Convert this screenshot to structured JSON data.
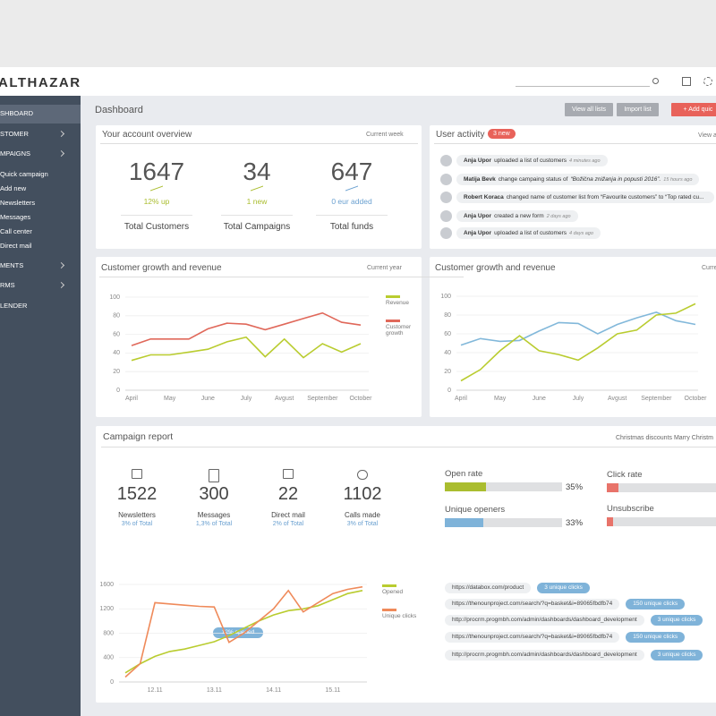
{
  "header": {
    "logo": "ALTHAZAR"
  },
  "sidebar": {
    "nav": [
      "SHBOARD",
      "STOMER",
      "MPAIGNS",
      "MENTS",
      "RMS",
      "LENDER"
    ],
    "campaign_links": [
      "Quick campaign",
      "Add new",
      "Newsletters",
      "Messages",
      "Call center",
      "Direct mail"
    ]
  },
  "page": {
    "title": "Dashboard",
    "buttons": [
      "View all lists",
      "Import list",
      "+ Add quic"
    ]
  },
  "overview": {
    "title": "Your account overview",
    "period": "Current week",
    "stats": [
      {
        "value": 1647,
        "change": "12% up",
        "label": "Total Customers"
      },
      {
        "value": 34,
        "change": "1 new",
        "label": "Total Campaigns"
      },
      {
        "value": 647,
        "change": "0 eur added",
        "label": "Total funds"
      }
    ]
  },
  "activity": {
    "title": "User activity",
    "badge": "3 new",
    "link": "View a",
    "items": [
      {
        "user": "Anja Upor",
        "action": "uploaded a list of customers",
        "time": "4 minutes ago"
      },
      {
        "user": "Matija Bevk",
        "action": "change campaing status of",
        "quote": "“Božična znižanja in popusti 2016”.",
        "time": "15 hours ago"
      },
      {
        "user": "Robert Koraca",
        "action": "changed name of customer list from “Favourite customers” to “Top rated cu..."
      },
      {
        "user": "Anja Upor",
        "action": "created a new form",
        "time": "2 days ago"
      },
      {
        "user": "Anja Upor",
        "action": "uploaded a list of customers",
        "time": "4 days ago"
      }
    ]
  },
  "campaign": {
    "title": "Campaign report",
    "filter": "Christmas discounts Marry Christm",
    "stats": [
      {
        "value": 1522,
        "label": "Newsletters",
        "share": "3% of Total"
      },
      {
        "value": 300,
        "label": "Messages",
        "share": "1,3% of Total"
      },
      {
        "value": 22,
        "label": "Direct mail",
        "share": "2% of Total"
      },
      {
        "value": 1102,
        "label": "Calls made",
        "share": "3% of Total"
      }
    ],
    "rates": [
      {
        "name": "Open rate",
        "value": 35,
        "label": "35%",
        "color": "#aabd2f"
      },
      {
        "name": "Unique openers",
        "value": 33,
        "label": "33%",
        "color": "#7fb3d9"
      },
      {
        "name": "Click rate",
        "value": 9,
        "color": "#e8736a"
      },
      {
        "name": "Unsubscribe",
        "value": 5,
        "color": "#e8736a"
      }
    ],
    "links": [
      {
        "url": "https://databox.com/product",
        "clicks": "3 unique clicks"
      },
      {
        "url": "https://thenounproject.com/search/?q=basket&i=89065fbdfb74",
        "clicks": "150 unique clicks"
      },
      {
        "url": "http://procrm.progmbh.com/admin/dashboards/dashboard_development",
        "clicks": "3 unique clicks"
      },
      {
        "url": "https://thenounproject.com/search/?q=basket&i=89065fbdfb74",
        "clicks": "150 unique clicks"
      },
      {
        "url": "http://procrm.progmbh.com/admin/dashboards/dashboard_development",
        "clicks": "3 unique clicks"
      }
    ]
  },
  "chart_data": [
    {
      "type": "line",
      "title": "Customer growth and revenue",
      "period": "Current year",
      "categories": [
        "April",
        null,
        "May",
        null,
        "June",
        null,
        "July",
        null,
        "Avgust",
        null,
        "September",
        null,
        "October"
      ],
      "ylim": [
        0,
        100
      ],
      "yticks": [
        0,
        20,
        40,
        60,
        80,
        100
      ],
      "grid": true,
      "series": [
        {
          "name": "Revenue",
          "color": "#b9cc2f",
          "values": [
            32,
            38,
            38,
            41,
            44,
            52,
            57,
            36,
            55,
            35,
            50,
            41,
            50
          ]
        },
        {
          "name": "Customer growth",
          "color": "#e0685a",
          "values": [
            48,
            55,
            55,
            55,
            66,
            72,
            71,
            65,
            71,
            77,
            83,
            73,
            70
          ]
        }
      ]
    },
    {
      "type": "line",
      "title": "Customer growth and revenue",
      "period": "Curre",
      "categories": [
        "April",
        null,
        "May",
        null,
        "June",
        null,
        "July",
        null,
        "Avgust",
        null,
        "September",
        null,
        "October"
      ],
      "ylim": [
        0,
        100
      ],
      "yticks": [
        0,
        20,
        40,
        60,
        80,
        100
      ],
      "grid": true,
      "series": [
        {
          "color": "#82b8da",
          "values": [
            48,
            55,
            52,
            53,
            63,
            72,
            71,
            60,
            70,
            77,
            83,
            74,
            70
          ]
        },
        {
          "color": "#b9cc2f",
          "values": [
            10,
            22,
            42,
            58,
            42,
            38,
            32,
            45,
            60,
            64,
            80,
            82,
            92
          ]
        }
      ]
    },
    {
      "type": "line",
      "annotation": "12% opened",
      "categories": [
        null,
        null,
        "12.11",
        null,
        null,
        null,
        "13.11",
        null,
        null,
        null,
        "14.11",
        null,
        null,
        null,
        "15.11",
        null,
        null
      ],
      "ylim": [
        0,
        1600
      ],
      "yticks": [
        0,
        400,
        800,
        1200,
        1600
      ],
      "grid": true,
      "series": [
        {
          "name": "Opened",
          "color": "#b9cc2f",
          "values": [
            150,
            300,
            420,
            500,
            540,
            600,
            660,
            760,
            880,
            1000,
            1100,
            1170,
            1200,
            1250,
            1350,
            1450,
            1500
          ]
        },
        {
          "name": "Unique clicks",
          "color": "#ef8a5a",
          "values": [
            80,
            300,
            1300,
            1280,
            1260,
            1240,
            1230,
            650,
            800,
            1000,
            1200,
            1500,
            1150,
            1300,
            1450,
            1520,
            1560
          ]
        }
      ]
    }
  ]
}
